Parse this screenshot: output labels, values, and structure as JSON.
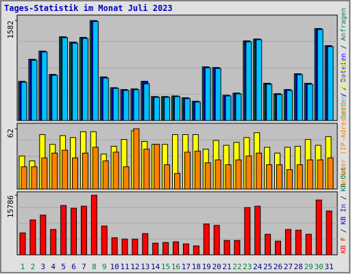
{
  "title": "Tages-Statistik im Monat Juli 2023",
  "separator": " / ",
  "chart_data": [
    {
      "type": "bar",
      "categories": [
        "1",
        "2",
        "3",
        "4",
        "5",
        "6",
        "7",
        "8",
        "9",
        "10",
        "11",
        "12",
        "13",
        "14",
        "15",
        "16",
        "17",
        "18",
        "19",
        "20",
        "21",
        "22",
        "23",
        "24",
        "25",
        "26",
        "27",
        "28",
        "29",
        "30",
        "31"
      ],
      "category_colors": [
        "#008040",
        "#008040",
        "#00008b",
        "#00008b",
        "#00008b",
        "#00008b",
        "#00008b",
        "#008040",
        "#008040",
        "#00008b",
        "#00008b",
        "#00008b",
        "#00008b",
        "#00008b",
        "#008040",
        "#008040",
        "#00008b",
        "#00008b",
        "#00008b",
        "#00008b",
        "#00008b",
        "#008040",
        "#008040",
        "#00008b",
        "#00008b",
        "#00008b",
        "#00008b",
        "#00008b",
        "#008040",
        "#008040",
        "#00008b"
      ],
      "ylim": [
        0,
        1582
      ],
      "yticks": [
        1582
      ],
      "series": [
        {
          "name": "Anfragen",
          "color": "#00805c",
          "values": [
            620,
            970,
            1100,
            730,
            1325,
            1240,
            1315,
            1582,
            690,
            520,
            490,
            500,
            620,
            380,
            380,
            390,
            360,
            305,
            850,
            840,
            400,
            435,
            1260,
            1290,
            590,
            425,
            490,
            740,
            590,
            1455,
            1185
          ]
        },
        {
          "name": "Dateien",
          "color": "#0000ff",
          "values": [
            620,
            970,
            1100,
            730,
            1325,
            1240,
            1315,
            1582,
            690,
            520,
            490,
            500,
            620,
            380,
            380,
            390,
            360,
            305,
            850,
            840,
            400,
            435,
            1260,
            1290,
            590,
            425,
            490,
            740,
            590,
            1455,
            1185
          ]
        },
        {
          "name": "Seiten",
          "color": "#00c0ff",
          "values": [
            607,
            954,
            1084,
            715,
            1311,
            1224,
            1300,
            1566,
            672,
            509,
            477,
            488,
            580,
            368,
            368,
            379,
            347,
            293,
            834,
            824,
            390,
            423,
            1246,
            1279,
            574,
            412,
            477,
            726,
            574,
            1441,
            1170
          ]
        }
      ]
    },
    {
      "type": "bar",
      "ylim": [
        0,
        62
      ],
      "yticks": [
        62
      ],
      "series": [
        {
          "name": "Besuche",
          "color": "#ffff00",
          "values": [
            34,
            29,
            56,
            46,
            55,
            53,
            59,
            59,
            36,
            44,
            51,
            60,
            49,
            46,
            46,
            56,
            56,
            56,
            41,
            50,
            45,
            48,
            53,
            58,
            43,
            37,
            43,
            44,
            51,
            45,
            54
          ]
        },
        {
          "name": "Rechner (IP-Adressen)",
          "color": "#ff8000",
          "values": [
            23,
            23,
            32,
            37,
            40,
            32,
            37,
            43,
            29,
            38,
            23,
            62,
            41,
            46,
            25,
            16,
            38,
            39,
            27,
            30,
            25,
            30,
            34,
            37,
            25,
            25,
            20,
            25,
            30,
            30,
            32
          ]
        }
      ]
    },
    {
      "type": "bar",
      "ylim": [
        0,
        15786
      ],
      "yticks": [
        15786
      ],
      "series": [
        {
          "name": "KB F",
          "color": "#ff0000",
          "values": [
            5806,
            9254,
            10524,
            6713,
            13063,
            12338,
            12882,
            15786,
            7621,
            4536,
            4173,
            4173,
            5625,
            3085,
            3266,
            3448,
            2903,
            2359,
            8165,
            7802,
            3810,
            3810,
            12520,
            12882,
            5443,
            3629,
            6713,
            6532,
            5443,
            14516,
            11612
          ]
        }
      ],
      "extra_legend": [
        {
          "name": "KB In",
          "color": "#0000ff"
        },
        {
          "name": "KB Out",
          "color": "#00805c"
        }
      ]
    }
  ]
}
